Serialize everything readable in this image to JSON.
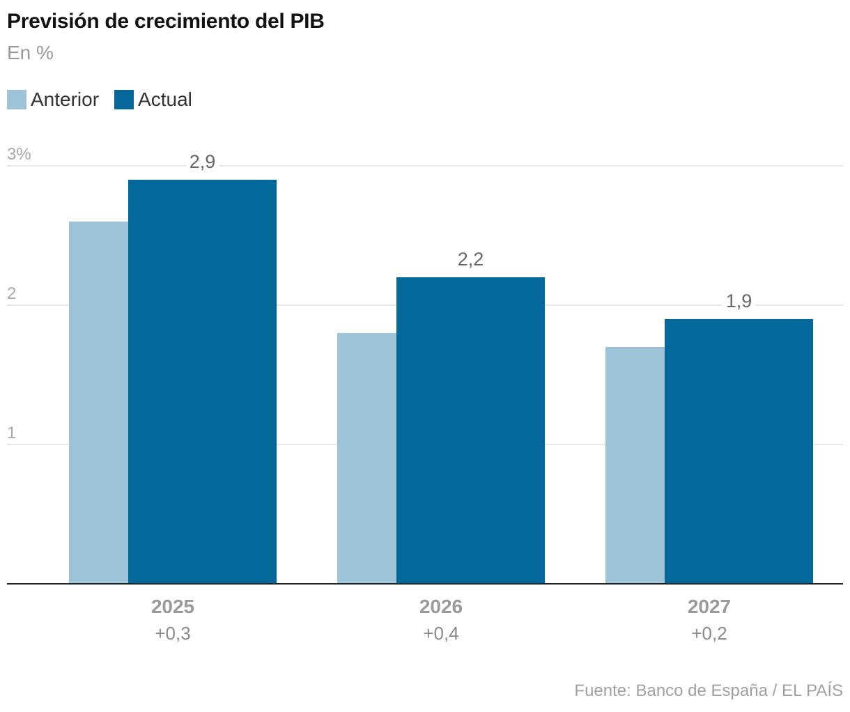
{
  "title": "Previsión de crecimiento del PIB",
  "subtitle": "En %",
  "source": "Fuente: Banco de España / EL PAÍS",
  "chart_data": {
    "type": "bar",
    "title": "Previsión de crecimiento del PIB",
    "subtitle": "En %",
    "categories": [
      "2025",
      "2026",
      "2027"
    ],
    "category_sublabels": [
      "+0,3",
      "+0,4",
      "+0,2"
    ],
    "series": [
      {
        "name": "Anterior",
        "values": [
          2.6,
          1.8,
          1.7
        ],
        "color": "#9dc3d8"
      },
      {
        "name": "Actual",
        "values": [
          2.9,
          2.2,
          1.9
        ],
        "color": "#05689a",
        "labels": [
          "2,9",
          "2,2",
          "1,9"
        ]
      }
    ],
    "yticks": [
      {
        "value": 1,
        "label": "1"
      },
      {
        "value": 2,
        "label": "2"
      },
      {
        "value": 3,
        "label": "3%"
      }
    ],
    "ylim": [
      0,
      3
    ],
    "grid": true,
    "legend": "top-left"
  }
}
